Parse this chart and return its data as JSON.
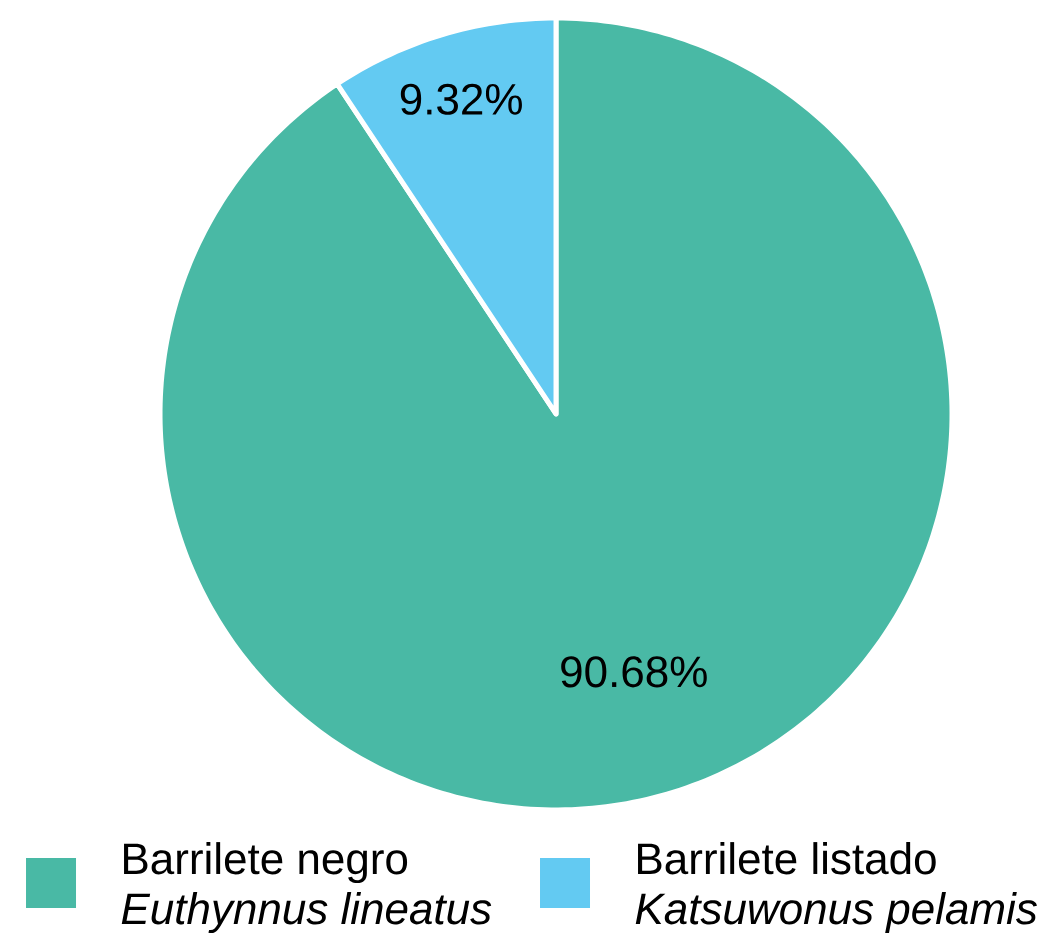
{
  "chart_data": {
    "type": "pie",
    "categories": [
      "Barrilete negro *Euthynnus lineatus*",
      "Barrilete listado *Katsuwonus pelamis*"
    ],
    "values": [
      90.68,
      9.32
    ],
    "colors": [
      "#49b9a5",
      "#63caf2"
    ],
    "value_labels": [
      "90.68%",
      "9.32%"
    ],
    "legend": "bottom"
  }
}
